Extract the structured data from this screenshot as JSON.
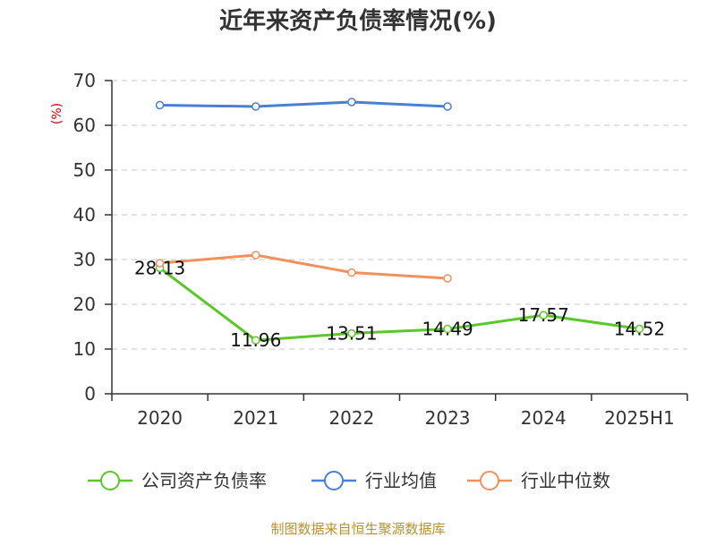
{
  "chart_data": {
    "type": "line",
    "title": "近年来资产负债率情况(%)",
    "y_unit_label": "(%)",
    "categories": [
      "2020",
      "2021",
      "2022",
      "2023",
      "2024",
      "2025H1"
    ],
    "ylim": [
      0,
      70
    ],
    "y_ticks": [
      0,
      10,
      20,
      30,
      40,
      50,
      60,
      70
    ],
    "grid": true,
    "legend_position": "bottom",
    "series": [
      {
        "name": "公司资产负债率",
        "color": "#5ac828",
        "values": [
          28.13,
          11.96,
          13.51,
          14.49,
          17.57,
          14.52
        ],
        "labels": [
          "28.13",
          "11.96",
          "13.51",
          "14.49",
          "17.57",
          "14.52"
        ],
        "show_labels": true
      },
      {
        "name": "行业均值",
        "color": "#4a7fd8",
        "values": [
          64.5,
          64.2,
          65.2,
          64.2,
          null,
          null
        ],
        "show_labels": false
      },
      {
        "name": "行业中位数",
        "color": "#f4905c",
        "values": [
          29.2,
          31.0,
          27.1,
          25.8,
          null,
          null
        ],
        "show_labels": false
      }
    ]
  },
  "source_text": "制图数据来自恒生聚源数据库"
}
